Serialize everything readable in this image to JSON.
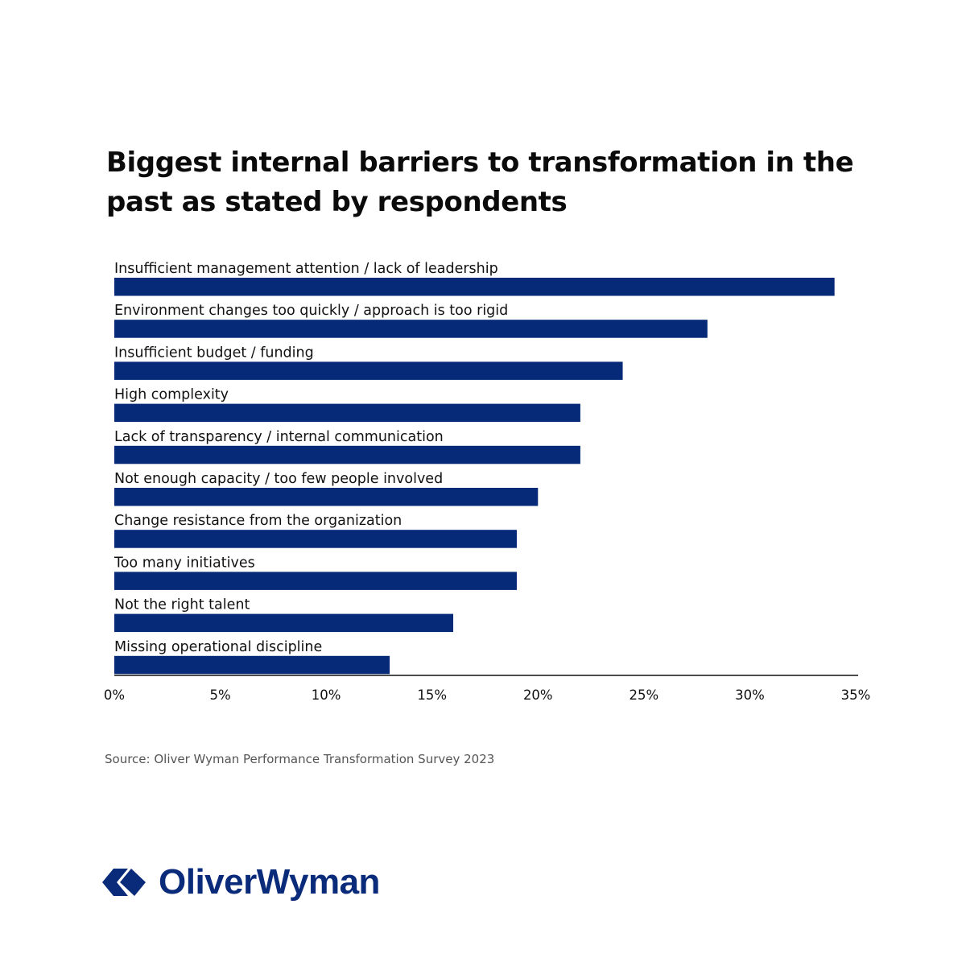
{
  "colors": {
    "bar": "#062a78",
    "axis": "#111111",
    "label": "#111111",
    "logo": "#0a2a7a"
  },
  "footer": {
    "source": "Source: Oliver Wyman Performance Transformation Survey 2023"
  },
  "logo": {
    "text": "OliverWyman",
    "icon": "oliver-wyman-mark-icon"
  },
  "chart_data": {
    "type": "bar",
    "orientation": "horizontal",
    "title": "Biggest internal barriers to transformation in the past as stated by respondents",
    "categories": [
      "Insufficient management attention / lack of leadership",
      "Environment changes too quickly / approach is too rigid",
      "Insufficient budget / funding",
      "High complexity",
      "Lack of transparency / internal communication",
      "Not enough capacity / too few people involved",
      "Change resistance from the organization",
      "Too many initiatives",
      "Not the right talent",
      "Missing operational discipline"
    ],
    "values": [
      34,
      28,
      24,
      22,
      22,
      20,
      19,
      19,
      16,
      13
    ],
    "unit": "%",
    "xlim": [
      0,
      35
    ],
    "xticks": [
      0,
      5,
      10,
      15,
      20,
      25,
      30,
      35
    ],
    "xtick_labels": [
      "0%",
      "5%",
      "10%",
      "15%",
      "20%",
      "25%",
      "30%",
      "35%"
    ],
    "grid": false,
    "legend": "none"
  }
}
